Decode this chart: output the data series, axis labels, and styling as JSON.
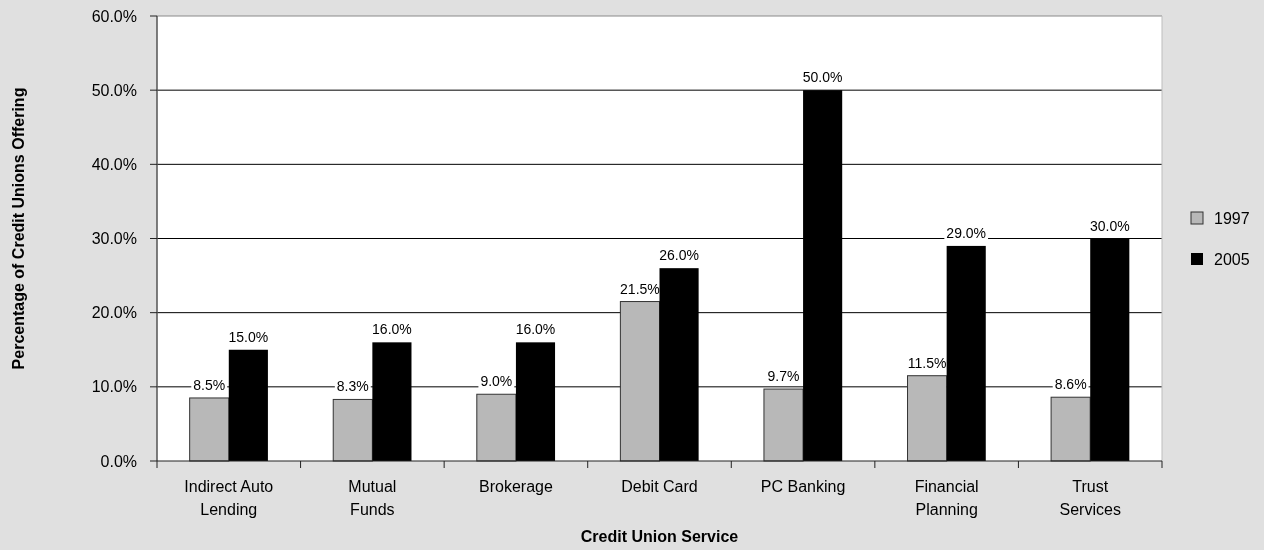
{
  "chart_data": {
    "type": "bar",
    "xlabel": "Credit Union Service",
    "ylabel": "Percentage of Credit Unions Offering",
    "categories": [
      "Indirect Auto Lending",
      "Mutual Funds",
      "Brokerage",
      "Debit Card",
      "PC Banking",
      "Financial Planning",
      "Trust Services"
    ],
    "series": [
      {
        "name": "1997",
        "color": "#b8b8b8",
        "values": [
          8.5,
          8.3,
          9.0,
          21.5,
          9.7,
          11.5,
          8.6
        ],
        "value_labels": [
          "8.5%",
          "8.3%",
          "9.0%",
          "21.5%",
          "9.7%",
          "11.5%",
          "8.6%"
        ]
      },
      {
        "name": "2005",
        "color": "#000000",
        "values": [
          15,
          16,
          16,
          26,
          50,
          29,
          30
        ],
        "value_labels": [
          "15.0%",
          "16.0%",
          "16.0%",
          "26.0%",
          "50.0%",
          "29.0%",
          "30.0%"
        ]
      }
    ],
    "ylim": [
      0,
      60
    ],
    "yticks": [
      {
        "value": 0,
        "label": "0.0%"
      },
      {
        "value": 10,
        "label": "10.0%"
      },
      {
        "value": 20,
        "label": "20.0%"
      },
      {
        "value": 30,
        "label": "30.0%"
      },
      {
        "value": 40,
        "label": "40.0%"
      },
      {
        "value": 50,
        "label": "50.0%"
      },
      {
        "value": 60,
        "label": "60.0%"
      }
    ],
    "grid": "y",
    "legend": "right"
  }
}
